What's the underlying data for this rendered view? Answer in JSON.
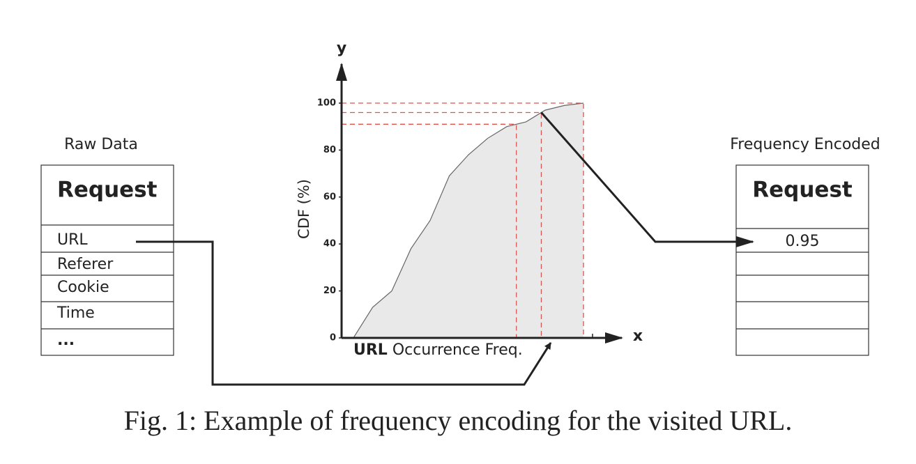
{
  "left_table": {
    "title": "Raw Data",
    "header": "Request",
    "rows": [
      "URL",
      "Referer",
      "Cookie",
      "Time",
      "..."
    ]
  },
  "right_table": {
    "title": "Frequency Encoded",
    "header": "Request",
    "rows": [
      "0.95"
    ]
  },
  "chart": {
    "y_axis_name": "y",
    "x_axis_name": "x",
    "y_label": "CDF (%)",
    "x_label": {
      "bold": "URL",
      "rest": "Occurrence Freq."
    },
    "ylim": [
      0,
      100
    ],
    "yticks": [
      0,
      20,
      40,
      60,
      80,
      100
    ],
    "curve": [
      0,
      13,
      20,
      38,
      50,
      69,
      78,
      85,
      90,
      92,
      97,
      99,
      100
    ],
    "highlight_levels": [
      91,
      96,
      100
    ]
  },
  "caption": "Fig. 1: Example of frequency encoding for the visited URL."
}
